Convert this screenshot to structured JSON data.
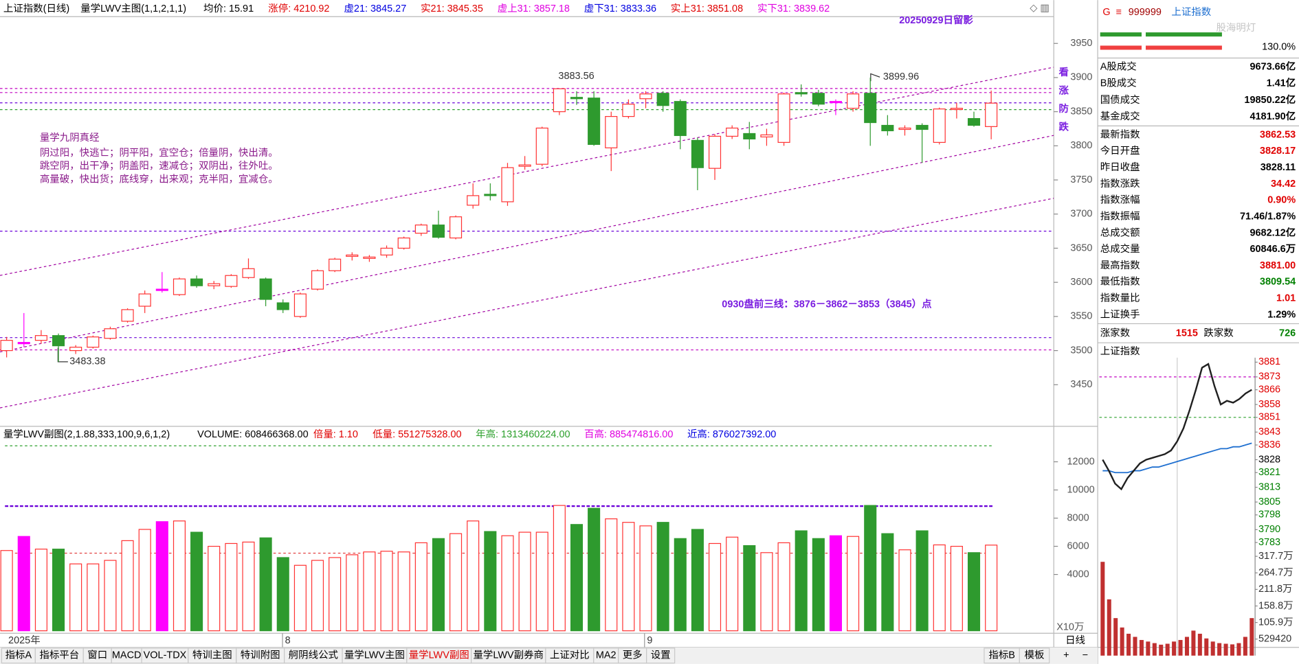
{
  "header": {
    "items": [
      {
        "text": "上证指数(日线)",
        "color": "#000000"
      },
      {
        "text": "量学LWV主图(1,1,2,1,1)",
        "color": "#000000"
      },
      {
        "text": "均价: 15.91",
        "color": "#000000"
      },
      {
        "text": "涨停: 4210.92",
        "color": "#e00000"
      },
      {
        "text": "虚21: 3845.27",
        "color": "#0000e0"
      },
      {
        "text": "实21: 3845.35",
        "color": "#e00000"
      },
      {
        "text": "虚上31: 3857.18",
        "color": "#e000e0"
      },
      {
        "text": "虚下31: 3833.36",
        "color": "#0000e0"
      },
      {
        "text": "实上31: 3851.08",
        "color": "#e00000"
      },
      {
        "text": "实下31: 3839.62",
        "color": "#e000e0"
      }
    ]
  },
  "main": {
    "ylim": [
      3389,
      3988
    ],
    "yticks": [
      3450,
      3500,
      3550,
      3600,
      3650,
      3700,
      3750,
      3800,
      3850,
      3900,
      3950
    ],
    "up_color": "#ff3232",
    "candles": [
      {
        "open": 3500,
        "close": 3515,
        "high": 3520,
        "low": 3490,
        "color": "#ff3232"
      },
      {
        "open": 3510,
        "close": 3512,
        "high": 3555,
        "low": 3505,
        "color": "#ff00ff"
      },
      {
        "open": 3515,
        "close": 3522,
        "high": 3530,
        "low": 3510,
        "color": "#ff3232"
      },
      {
        "open": 3522,
        "close": 3507,
        "high": 3525,
        "low": 3483.38,
        "color": "#2e9a2e"
      },
      {
        "open": 3500,
        "close": 3505,
        "high": 3508,
        "low": 3495,
        "color": "#ff3232"
      },
      {
        "open": 3505,
        "close": 3520,
        "high": 3522,
        "low": 3503,
        "color": "#ff3232"
      },
      {
        "open": 3518,
        "close": 3532,
        "high": 3535,
        "low": 3516,
        "color": "#ff3232"
      },
      {
        "open": 3543,
        "close": 3560,
        "high": 3562,
        "low": 3541,
        "color": "#ff3232"
      },
      {
        "open": 3565,
        "close": 3583,
        "high": 3588,
        "low": 3555,
        "color": "#ff3232"
      },
      {
        "open": 3588,
        "close": 3590,
        "high": 3615,
        "low": 3585,
        "color": "#ff00ff"
      },
      {
        "open": 3582,
        "close": 3605,
        "high": 3607,
        "low": 3580,
        "color": "#ff3232"
      },
      {
        "open": 3605,
        "close": 3595,
        "high": 3610,
        "low": 3592,
        "color": "#2e9a2e"
      },
      {
        "open": 3595,
        "close": 3598,
        "high": 3602,
        "low": 3590,
        "color": "#ff3232"
      },
      {
        "open": 3594,
        "close": 3610,
        "high": 3612,
        "low": 3592,
        "color": "#ff3232"
      },
      {
        "open": 3607,
        "close": 3620,
        "high": 3635,
        "low": 3605,
        "color": "#ff3232"
      },
      {
        "open": 3605,
        "close": 3575,
        "high": 3607,
        "low": 3565,
        "color": "#2e9a2e"
      },
      {
        "open": 3570,
        "close": 3560,
        "high": 3575,
        "low": 3555,
        "color": "#2e9a2e"
      },
      {
        "open": 3550,
        "close": 3583,
        "high": 3585,
        "low": 3548,
        "color": "#ff3232"
      },
      {
        "open": 3590,
        "close": 3617,
        "high": 3619,
        "low": 3588,
        "color": "#ff3232"
      },
      {
        "open": 3617,
        "close": 3634,
        "high": 3636,
        "low": 3615,
        "color": "#ff3232"
      },
      {
        "open": 3638,
        "close": 3640,
        "high": 3644,
        "low": 3632,
        "color": "#ff3232"
      },
      {
        "open": 3635,
        "close": 3637,
        "high": 3640,
        "low": 3630,
        "color": "#ff3232"
      },
      {
        "open": 3640,
        "close": 3650,
        "high": 3654,
        "low": 3636,
        "color": "#ff3232"
      },
      {
        "open": 3650,
        "close": 3665,
        "high": 3667,
        "low": 3648,
        "color": "#ff3232"
      },
      {
        "open": 3672,
        "close": 3684,
        "high": 3686,
        "low": 3668,
        "color": "#ff3232"
      },
      {
        "open": 3684,
        "close": 3666,
        "high": 3705,
        "low": 3664,
        "color": "#2e9a2e"
      },
      {
        "open": 3665,
        "close": 3696,
        "high": 3698,
        "low": 3663,
        "color": "#ff3232"
      },
      {
        "open": 3713,
        "close": 3727,
        "high": 3745,
        "low": 3708,
        "color": "#ff3232"
      },
      {
        "open": 3727,
        "close": 3729,
        "high": 3745,
        "low": 3720,
        "color": "#2e9a2e"
      },
      {
        "open": 3718,
        "close": 3768,
        "high": 3775,
        "low": 3712,
        "color": "#ff3232"
      },
      {
        "open": 3770,
        "close": 3772,
        "high": 3785,
        "low": 3765,
        "color": "#ff3232"
      },
      {
        "open": 3773,
        "close": 3826,
        "high": 3828,
        "low": 3770,
        "color": "#ff3232"
      },
      {
        "open": 3850,
        "close": 3883.56,
        "high": 3883.56,
        "low": 3845,
        "color": "#ff3232"
      },
      {
        "open": 3869,
        "close": 3871,
        "high": 3880,
        "low": 3860,
        "color": "#2e9a2e"
      },
      {
        "open": 3870,
        "close": 3802,
        "high": 3880,
        "low": 3800,
        "color": "#2e9a2e"
      },
      {
        "open": 3797,
        "close": 3843,
        "high": 3850,
        "low": 3763,
        "color": "#ff3232"
      },
      {
        "open": 3843,
        "close": 3861,
        "high": 3868,
        "low": 3840,
        "color": "#ff3232"
      },
      {
        "open": 3869,
        "close": 3876,
        "high": 3880,
        "low": 3855,
        "color": "#ff3232"
      },
      {
        "open": 3877,
        "close": 3859,
        "high": 3880,
        "low": 3850,
        "color": "#2e9a2e"
      },
      {
        "open": 3865,
        "close": 3815,
        "high": 3868,
        "low": 3795,
        "color": "#2e9a2e"
      },
      {
        "open": 3808,
        "close": 3768,
        "high": 3812,
        "low": 3735,
        "color": "#2e9a2e"
      },
      {
        "open": 3767,
        "close": 3814,
        "high": 3817,
        "low": 3750,
        "color": "#ff3232"
      },
      {
        "open": 3814,
        "close": 3826,
        "high": 3830,
        "low": 3810,
        "color": "#ff3232"
      },
      {
        "open": 3818,
        "close": 3810,
        "high": 3835,
        "low": 3795,
        "color": "#2e9a2e"
      },
      {
        "open": 3813,
        "close": 3816,
        "high": 3825,
        "low": 3800,
        "color": "#ff3232"
      },
      {
        "open": 3805,
        "close": 3876,
        "high": 3878,
        "low": 3800,
        "color": "#ff3232"
      },
      {
        "open": 3876,
        "close": 3878,
        "high": 3890,
        "low": 3872,
        "color": "#2e9a2e"
      },
      {
        "open": 3877,
        "close": 3861,
        "high": 3882,
        "low": 3858,
        "color": "#2e9a2e"
      },
      {
        "open": 3864,
        "close": 3865,
        "high": 3868,
        "low": 3845,
        "color": "#ff00ff"
      },
      {
        "open": 3855,
        "close": 3876,
        "high": 3880,
        "low": 3850,
        "color": "#ff3232"
      },
      {
        "open": 3877,
        "close": 3834,
        "high": 3899.96,
        "low": 3800,
        "color": "#2e9a2e"
      },
      {
        "open": 3830,
        "close": 3822,
        "high": 3845,
        "low": 3815,
        "color": "#2e9a2e"
      },
      {
        "open": 3824,
        "close": 3826,
        "high": 3830,
        "low": 3815,
        "color": "#ff3232"
      },
      {
        "open": 3830,
        "close": 3824,
        "high": 3833,
        "low": 3775,
        "color": "#2e9a2e"
      },
      {
        "open": 3805,
        "close": 3854,
        "high": 3856,
        "low": 3802,
        "color": "#ff3232"
      },
      {
        "open": 3854,
        "close": 3855,
        "high": 3863,
        "low": 3840,
        "color": "#ff3232"
      },
      {
        "open": 3840,
        "close": 3830,
        "high": 3850,
        "low": 3828,
        "color": "#2e9a2e"
      },
      {
        "open": 3828.17,
        "close": 3862.53,
        "high": 3881,
        "low": 3809.54,
        "color": "#ff3232"
      }
    ],
    "levels": [
      {
        "value": 3884,
        "color": "#c000c0"
      },
      {
        "value": 3878,
        "color": "#c000c0"
      },
      {
        "value": 3863,
        "color": "#6a00d8"
      },
      {
        "value": 3853,
        "color": "#2ca02c"
      },
      {
        "value": 3675,
        "color": "#6a00d8"
      },
      {
        "value": 3519,
        "color": "#6a00d8"
      },
      {
        "value": 3501,
        "color": "#c000c0"
      }
    ],
    "channels": [
      {
        "from": [
          0,
          3612
        ],
        "to": [
          60,
          3912
        ]
      },
      {
        "from": [
          0,
          3500
        ],
        "to": [
          60,
          3812
        ]
      },
      {
        "from": [
          0,
          3418
        ],
        "to": [
          60,
          3720
        ]
      }
    ],
    "channel_color": "#a000a0",
    "labels": [
      "3883.56",
      "3899.96",
      "3483.38"
    ],
    "stamp": "20250929日留影",
    "side_note": "看涨防跌",
    "poem": [
      "量学九阴真经",
      "阴过阳，快逃亡；阴平阳，宜空仓；倍量阴，快出清。",
      "跳空阴，出干净；阴盖阳，速减仓；双阴出，往外吐。",
      "高量破，快出货；底线穿，出来观；克半阳，宜减仓。"
    ],
    "plan": "0930盘前三线：3876－3862－3853（3845）点"
  },
  "volume": {
    "header": [
      {
        "text": "量学LWV副图(2,1.88,333,100,9,6,1,2)",
        "color": "#000000"
      },
      {
        "text": "VOLUME: 608466368.00",
        "color": "#000000"
      },
      {
        "text": "倍量: 1.10",
        "color": "#e00000"
      },
      {
        "text": "低量: 551275328.00",
        "color": "#e00000"
      },
      {
        "text": "年高: 1313460224.00",
        "color": "#2ca02c"
      },
      {
        "text": "百高: 885474816.00",
        "color": "#e000e0"
      },
      {
        "text": "近高: 876027392.00",
        "color": "#0000e0"
      }
    ],
    "ylim": [
      0,
      13400
    ],
    "yticks": [
      4000,
      6000,
      8000,
      10000,
      12000
    ],
    "unit": "X10万",
    "values": [
      5700,
      6700,
      5800,
      5800,
      4750,
      4750,
      5000,
      6400,
      7200,
      7750,
      7800,
      7000,
      6000,
      6200,
      6300,
      6600,
      5200,
      4650,
      5000,
      5200,
      5400,
      5600,
      5650,
      5600,
      6250,
      6550,
      6900,
      7800,
      7050,
      6750,
      7000,
      7000,
      8900,
      7550,
      8700,
      7950,
      7700,
      7450,
      7700,
      6550,
      7200,
      6200,
      6650,
      6050,
      5550,
      6250,
      7100,
      6550,
      6750,
      6700,
      8900,
      6900,
      5750,
      7100,
      6100,
      6000,
      5550,
      6085
    ],
    "levels": [
      {
        "value": 13134.6,
        "color": "#2ca02c"
      },
      {
        "value": 8854.7,
        "color": "#6a00d8"
      },
      {
        "value": 5512.75,
        "color": "#e03030"
      }
    ]
  },
  "dates": [
    "2025年",
    "8",
    "9"
  ],
  "period": "日线",
  "tabs": [
    "指标A",
    "指标平台",
    "窗口",
    "MACD",
    "VOL-TDX",
    "特训主图",
    "特训附图",
    "舸阴线公式",
    "量学LWV主图",
    "量学LWV副图",
    "量学LWV副券商",
    "上证对比",
    "MA2",
    "更多",
    "设置"
  ],
  "tabs_right": [
    "指标B",
    "模板"
  ],
  "zoom": [
    "+",
    "−"
  ],
  "quote": {
    "code_prefix": "G",
    "code": "999999",
    "name": "上证指数",
    "watermark": "股海明灯",
    "ratio": "130.0%",
    "rows": [
      {
        "label": "A股成交",
        "value": "9673.66亿",
        "color": "#000000"
      },
      {
        "label": "B股成交",
        "value": "1.41亿",
        "color": "#000000"
      },
      {
        "label": "国债成交",
        "value": "19850.22亿",
        "color": "#000000"
      },
      {
        "label": "基金成交",
        "value": "4181.90亿",
        "color": "#000000"
      },
      {
        "label": "最新指数",
        "value": "3862.53",
        "color": "#e00000"
      },
      {
        "label": "今日开盘",
        "value": "3828.17",
        "color": "#e00000"
      },
      {
        "label": "昨日收盘",
        "value": "3828.11",
        "color": "#000000"
      },
      {
        "label": "指数涨跌",
        "value": "34.42",
        "color": "#e00000"
      },
      {
        "label": "指数涨幅",
        "value": "0.90%",
        "color": "#e00000"
      },
      {
        "label": "指数振幅",
        "value": "71.46/1.87%",
        "color": "#000000"
      },
      {
        "label": "总成交额",
        "value": "9682.12亿",
        "color": "#000000"
      },
      {
        "label": "总成交量",
        "value": "60846.6万",
        "color": "#000000"
      },
      {
        "label": "最高指数",
        "value": "3881.00",
        "color": "#e00000"
      },
      {
        "label": "最低指数",
        "value": "3809.54",
        "color": "#008000"
      },
      {
        "label": "指数量比",
        "value": "1.01",
        "color": "#e00000"
      },
      {
        "label": "上证换手",
        "value": "1.29%",
        "color": "#000000"
      }
    ],
    "breadth": [
      {
        "label": "涨家数",
        "value": "1515",
        "color": "#e00000"
      },
      {
        "label": "跌家数",
        "value": "726",
        "color": "#008000"
      }
    ]
  },
  "intraday": {
    "title": "上证指数",
    "ylim": [
      3780,
      3883
    ],
    "yticks": [
      3881,
      3873,
      3866,
      3858,
      3851,
      3843,
      3836,
      3828,
      3821,
      3813,
      3805,
      3798,
      3790,
      3783
    ],
    "price": [
      3828,
      3822,
      3815,
      3812,
      3818,
      3822,
      3826,
      3828,
      3829,
      3830,
      3831,
      3833,
      3838,
      3845,
      3855,
      3866,
      3878,
      3880,
      3868,
      3858,
      3860,
      3859,
      3861,
      3864,
      3866
    ],
    "average": [
      3822,
      3822,
      3821,
      3821,
      3821,
      3822,
      3822,
      3823,
      3824,
      3824,
      3825,
      3826,
      3827,
      3828,
      3829,
      3830,
      3831,
      3832,
      3833,
      3834,
      3834,
      3835,
      3835,
      3836,
      3837
    ],
    "price_color": "#202020",
    "average_color": "#1e6fd0",
    "levels": [
      {
        "value": 3873,
        "color": "#c000c0"
      },
      {
        "value": 3851,
        "color": "#2ca02c"
      }
    ],
    "volume_ylim": [
      0,
      3441700
    ],
    "volume_ticks": [
      {
        "value": 3177000,
        "label": "317.7万"
      },
      {
        "value": 2647000,
        "label": "264.7万"
      },
      {
        "value": 2118000,
        "label": "211.8万"
      },
      {
        "value": 1588000,
        "label": "158.8万"
      },
      {
        "value": 1059000,
        "label": "105.9万"
      },
      529420
    ],
    "volume": [
      3000000,
      1800000,
      1200000,
      900000,
      700000,
      600000,
      500000,
      450000,
      400000,
      350000,
      380000,
      450000,
      500000,
      600000,
      800000,
      700000,
      550000,
      450000,
      400000,
      380000,
      360000,
      400000,
      600000,
      1200000
    ],
    "volume_color": "#c03030"
  }
}
